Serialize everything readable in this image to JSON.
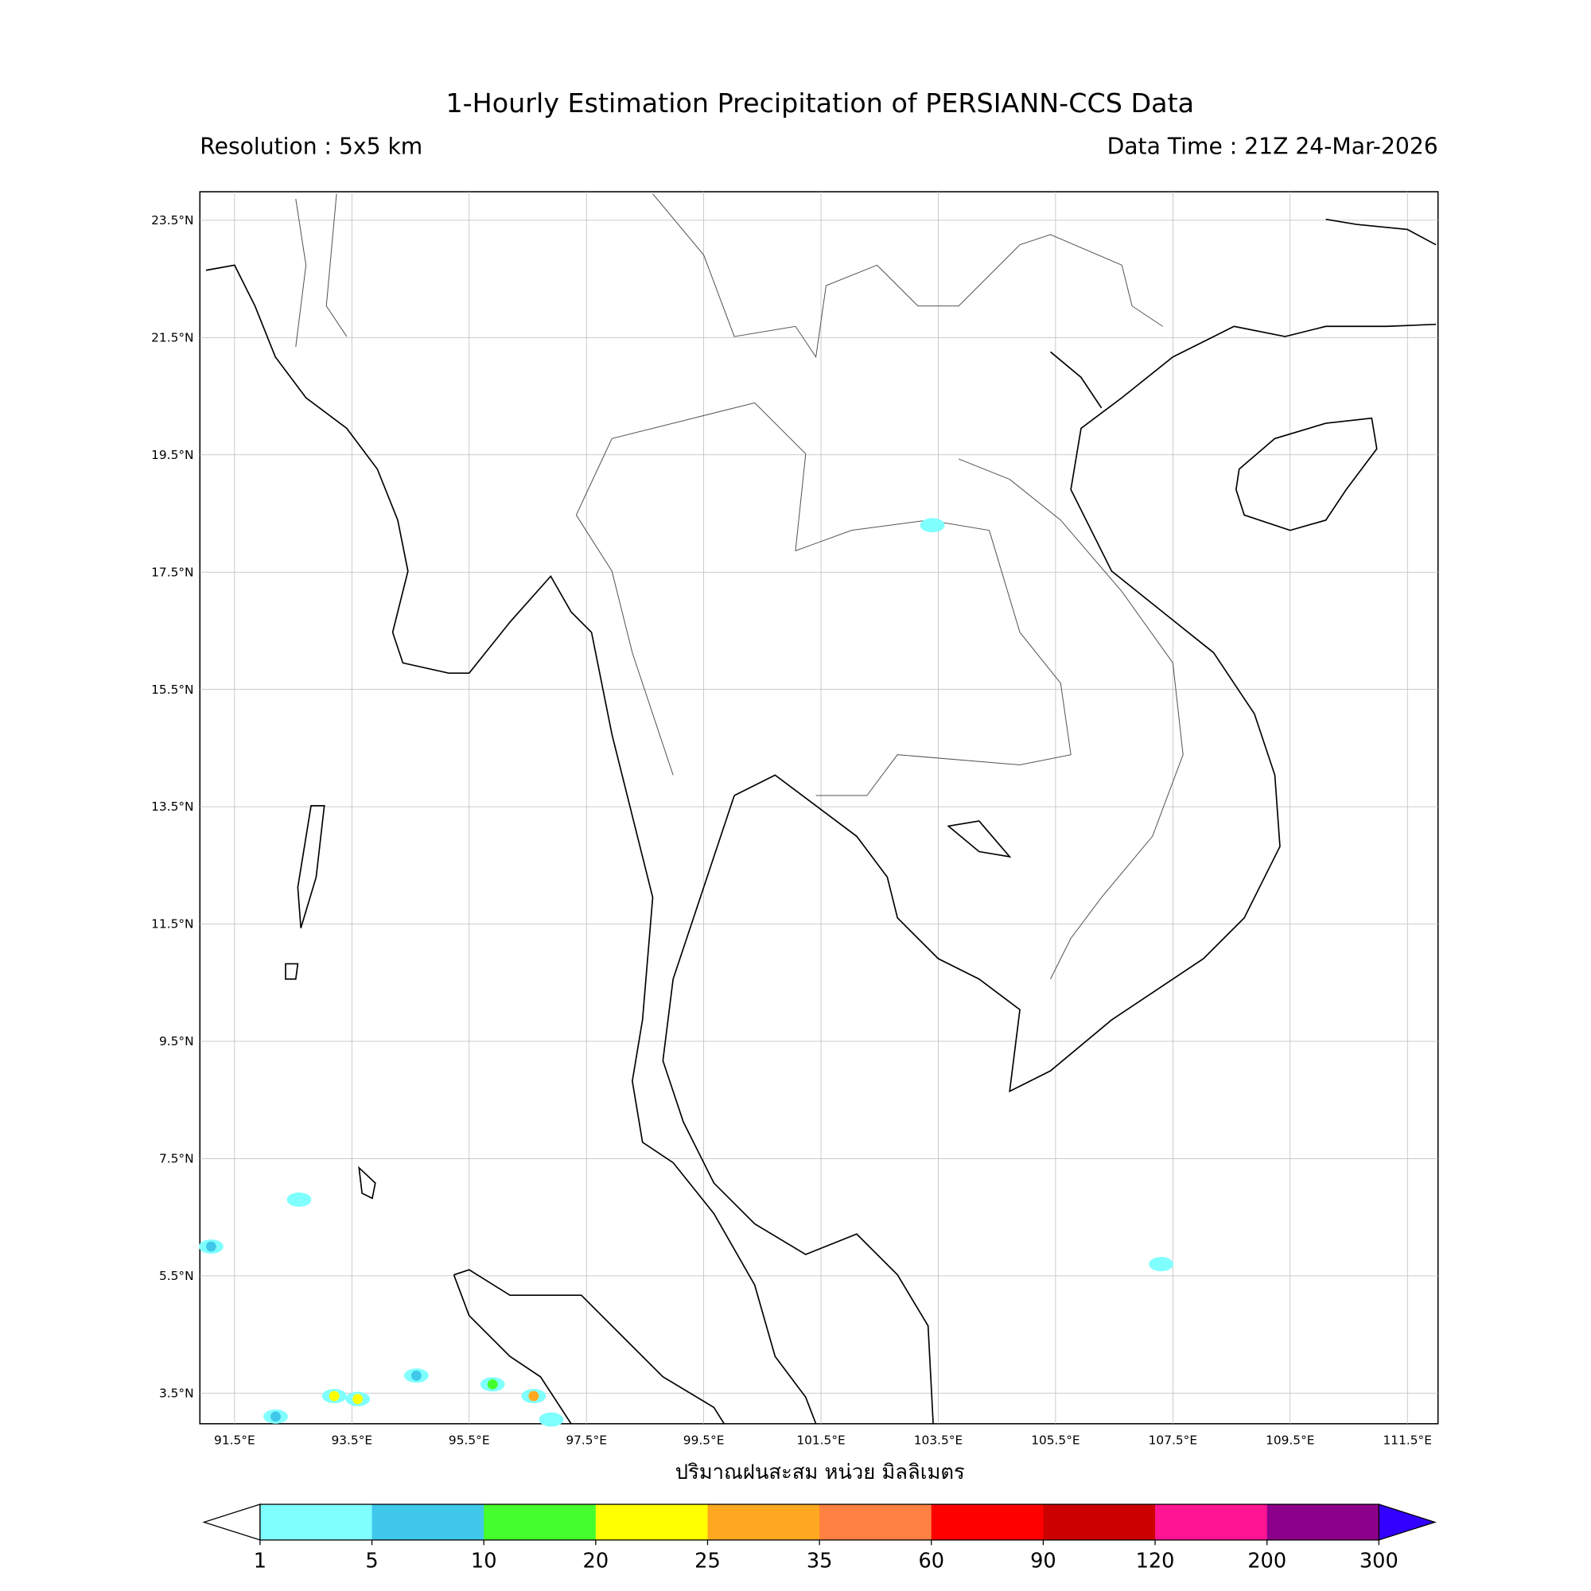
{
  "title": "1-Hourly Estimation Precipitation of PERSIANN-CCS Data",
  "resolution": "Resolution : 5x5 km",
  "data_time": "Data Time : 21Z 24-Mar-2026",
  "xlabel": "ปริมาณฝนสะสม หน่วย มิลลิเมตร",
  "lat_ticks": [
    "23.5°N",
    "21.5°N",
    "19.5°N",
    "17.5°N",
    "15.5°N",
    "13.5°N",
    "11.5°N",
    "9.5°N",
    "7.5°N",
    "5.5°N",
    "3.5°N"
  ],
  "lon_ticks": [
    "91.5°E",
    "93.5°E",
    "95.5°E",
    "97.5°E",
    "99.5°E",
    "101.5°E",
    "103.5°E",
    "105.5°E",
    "107.5°E",
    "109.5°E",
    "111.5°E"
  ],
  "extent": {
    "lon": [
      90.9,
      112.0
    ],
    "lat": [
      3.0,
      24.0
    ]
  },
  "colorbar": {
    "levels": [
      "1",
      "5",
      "10",
      "20",
      "25",
      "35",
      "60",
      "90",
      "120",
      "200",
      "300"
    ],
    "colors": [
      "#80ffff",
      "#3fc8ea",
      "#45ff2c",
      "#ffff00",
      "#ffa820",
      "#ff8040",
      "#ff0000",
      "#cc0000",
      "#ff1493",
      "#8b008b"
    ],
    "under_color": "#ffffff",
    "over_color": "#3300ff"
  },
  "rain_cells": [
    {
      "lon": 91.1,
      "lat": 6.0,
      "mm": 5
    },
    {
      "lon": 92.2,
      "lat": 3.1,
      "mm": 5
    },
    {
      "lon": 93.2,
      "lat": 3.45,
      "mm": 20
    },
    {
      "lon": 93.6,
      "lat": 3.4,
      "mm": 20
    },
    {
      "lon": 95.9,
      "lat": 3.65,
      "mm": 10
    },
    {
      "lon": 96.6,
      "lat": 3.45,
      "mm": 25
    },
    {
      "lon": 94.6,
      "lat": 3.8,
      "mm": 5
    },
    {
      "lon": 92.6,
      "lat": 6.8,
      "mm": 1
    },
    {
      "lon": 96.9,
      "lat": 3.05,
      "mm": 1
    },
    {
      "lon": 103.4,
      "lat": 18.3,
      "mm": 1
    },
    {
      "lon": 107.3,
      "lat": 5.7,
      "mm": 1
    }
  ]
}
